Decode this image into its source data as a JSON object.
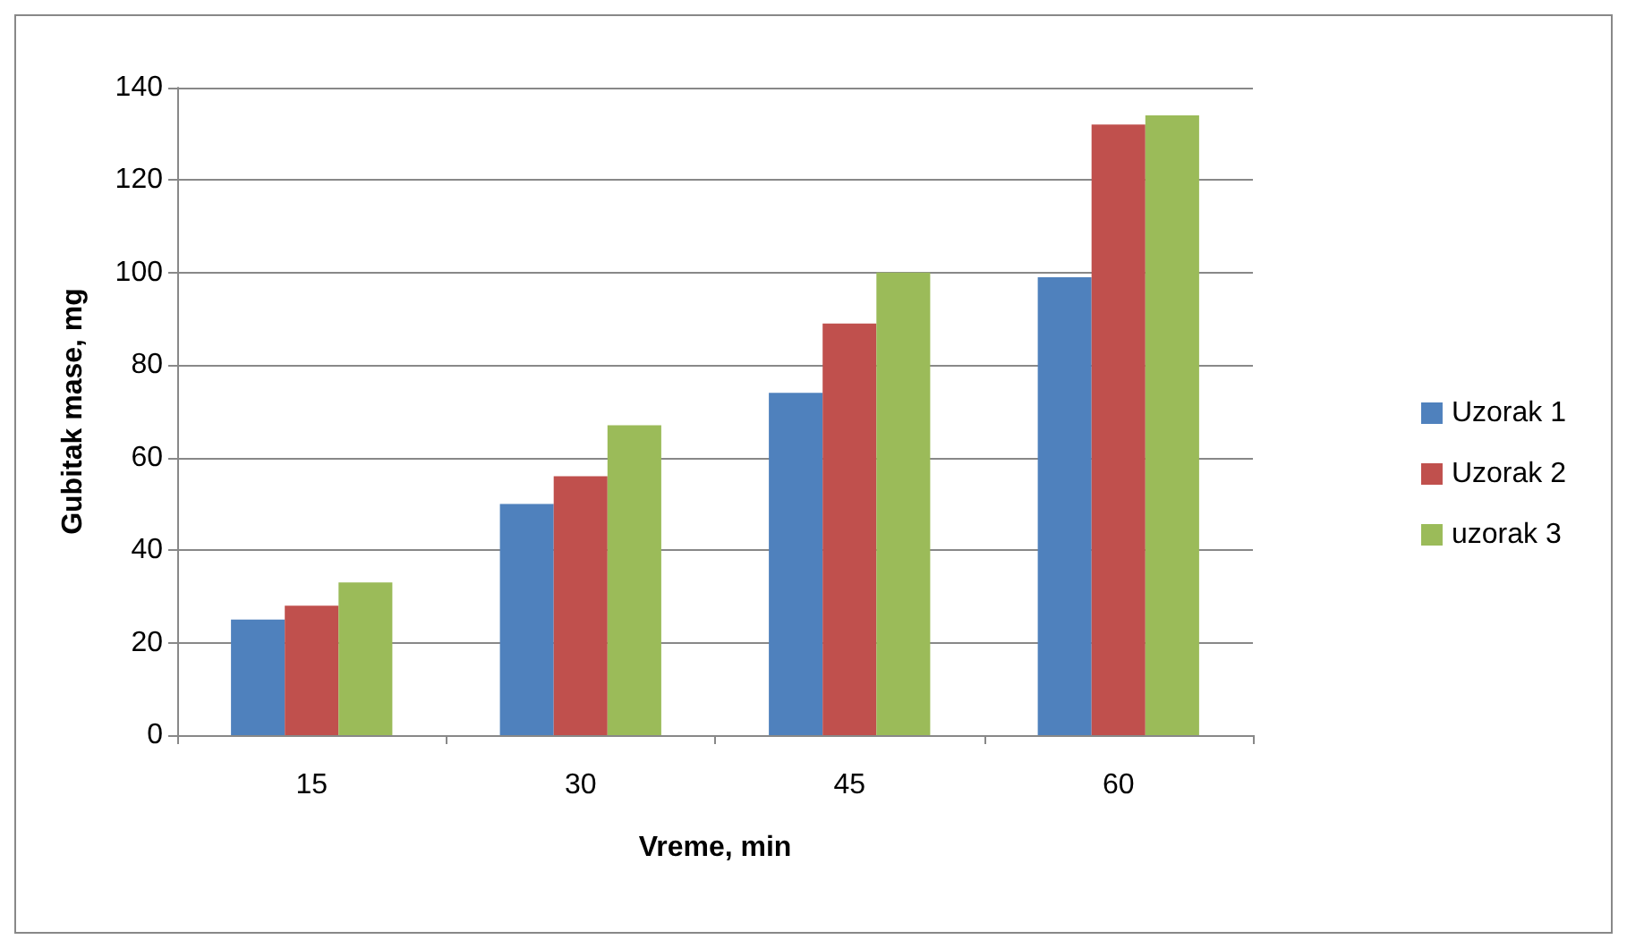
{
  "chart_data": {
    "type": "bar",
    "xlabel": "Vreme, min",
    "ylabel": "Gubitak mase, mg",
    "categories": [
      "15",
      "30",
      "45",
      "60"
    ],
    "series": [
      {
        "name": "Uzorak 1",
        "color": "#4f81bd",
        "values": [
          25,
          50,
          74,
          99
        ]
      },
      {
        "name": "Uzorak 2",
        "color": "#c0504d",
        "values": [
          28,
          56,
          89,
          132
        ]
      },
      {
        "name": "uzorak 3",
        "color": "#9bbb59",
        "values": [
          33,
          67,
          100,
          134
        ]
      }
    ],
    "ylim": [
      0,
      140
    ],
    "yticks": [
      0,
      20,
      40,
      60,
      80,
      100,
      120,
      140
    ],
    "grid": "y",
    "legend": "right"
  }
}
